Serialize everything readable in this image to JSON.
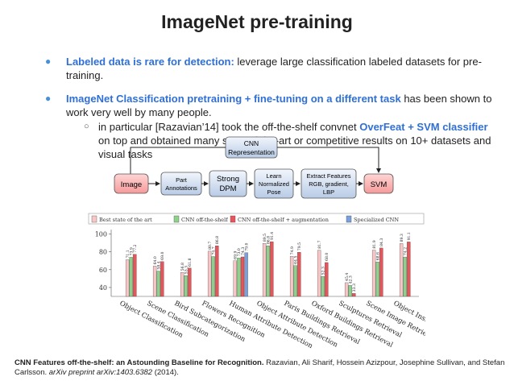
{
  "slide": {
    "title": "ImageNet pre-training",
    "bullet1_hl": "Labeled data is rare for detection:",
    "bullet1_rest": " leverage large classification labeled datasets for pre-training.",
    "bullet2_hl": "ImageNet Classification pretraining + fine-tuning on a different task",
    "bullet2_rest": " has been shown to work very well by many people.",
    "sub_pre": "in particular [Razavian’14] took the off-the-shelf convnet ",
    "sub_hl": "OverFeat + SVM classifier",
    "sub_post": " on top and obtained many state-of-the-art or competitive results on 10+ datasets and visual tasks"
  },
  "flow": {
    "cnn_rep": [
      "CNN",
      "Representation"
    ],
    "image": "Image",
    "part": [
      "Part",
      "Annotations"
    ],
    "dpm": [
      "Strong",
      "DPM"
    ],
    "learn": [
      "Learn",
      "Normalized",
      "Pose"
    ],
    "extract": [
      "Extract Features",
      "RGB, gradient,",
      "LBP"
    ],
    "svm": "SVM"
  },
  "citation": {
    "bold": "CNN Features off-the-shelf: an Astounding Baseline for Recognition.",
    "authors": " Razavian, Ali Sharif, Hossein Azizpour, Josephine Sullivan, and Stefan Carlsson. ",
    "venue": "arXiv preprint arXiv:1403.6382",
    "year": " (2014)."
  },
  "colors": {
    "best": "#f7c7c7",
    "cnn": "#8ed18a",
    "cnn_aug": "#e8545a",
    "specialized": "#7a9fd9",
    "accent": "#2f6fd6"
  },
  "chart_data": {
    "type": "bar",
    "legend": [
      "Best state of the art",
      "CNN off-the-shelf",
      "CNN off-the-shelf + augmentation",
      "Specialized CNN"
    ],
    "categories": [
      "Object Classification",
      "Scene Classification",
      "Bird Subcategorization",
      "Flowers Recognition",
      "Human Attribute Detection",
      "Object Attribute Detection",
      "Paris Buildings Retrieval",
      "Oxford Buildings Retrieval",
      "Sculptures Retrieval",
      "Scene Image Retrieval",
      "Object Instance Retrieval"
    ],
    "yticks": [
      "100",
      "80",
      "60",
      "40"
    ],
    "ylim": [
      30,
      105
    ],
    "series": [
      {
        "name": "Best state of the art",
        "values": [
          71.1,
          64.0,
          56.8,
          80.7,
          69.9,
          89.5,
          74.9,
          81.7,
          45.4,
          81.9,
          89.3
        ],
        "labels": [
          "71.1",
          "64.0",
          "56.8",
          "80.7",
          "69.9",
          "89.5",
          "74.9",
          "81.7",
          "45.4",
          "81.9",
          "89.3"
        ]
      },
      {
        "name": "CNN off-the-shelf",
        "values": [
          73.9,
          58.4,
          53.3,
          74.7,
          73.0,
          86.8,
          64.5,
          52.3,
          42.3,
          68.6,
          74.2
        ],
        "labels": [
          "73.9",
          "58.4",
          "53.3",
          "74.7",
          "73.0",
          "86.8",
          "64.5",
          "52.3",
          "42.3",
          "68.6",
          "74.2"
        ]
      },
      {
        "name": "CNN off-the-shelf + augmentation",
        "values": [
          77.2,
          69.0,
          61.8,
          86.8,
          74.3,
          91.4,
          79.5,
          68.0,
          33.3,
          84.3,
          91.1
        ],
        "labels": [
          "77.2",
          "69.0",
          "61.8",
          "86.8",
          "74.3",
          "91.4",
          "79.5",
          "68.0",
          "33.3",
          "84.3",
          "91.1"
        ]
      },
      {
        "name": "Specialized CNN",
        "values": [
          null,
          null,
          null,
          null,
          79.0,
          null,
          null,
          null,
          null,
          null,
          null
        ],
        "labels": [
          "",
          "",
          "",
          "",
          "79.0",
          "",
          "",
          "",
          "",
          "",
          ""
        ]
      }
    ]
  }
}
